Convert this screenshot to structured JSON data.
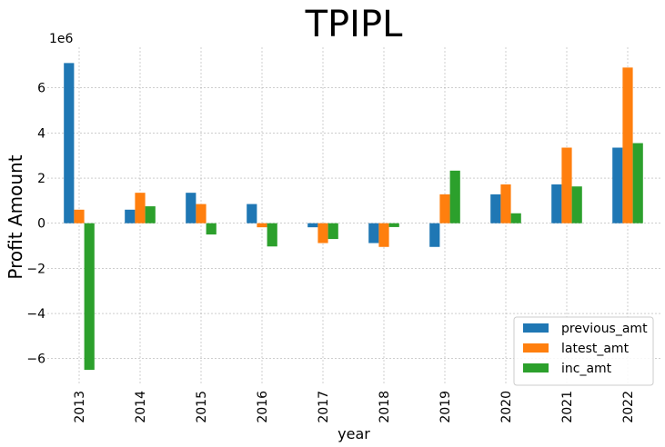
{
  "chart_data": {
    "type": "bar",
    "title": "TPIPL",
    "xlabel": "year",
    "ylabel": "Profit Amount",
    "offset_label": "1e6",
    "categories": [
      "2013",
      "2014",
      "2015",
      "2016",
      "2017",
      "2018",
      "2019",
      "2020",
      "2021",
      "2022"
    ],
    "series": [
      {
        "name": "previous_amt",
        "color": "#1f77b4",
        "values": [
          7100000,
          600000,
          1350000,
          850000,
          -180000,
          -880000,
          -1050000,
          1280000,
          1720000,
          3350000
        ]
      },
      {
        "name": "latest_amt",
        "color": "#ff7f0e",
        "values": [
          600000,
          1350000,
          850000,
          -180000,
          -880000,
          -1050000,
          1280000,
          1720000,
          3350000,
          6900000
        ]
      },
      {
        "name": "inc_amt",
        "color": "#2ca02c",
        "values": [
          -6500000,
          750000,
          -500000,
          -1030000,
          -700000,
          -170000,
          2330000,
          440000,
          1630000,
          3550000
        ]
      }
    ],
    "ylim": [
      -7100000,
      7800000
    ],
    "yticks": [
      -6000000,
      -4000000,
      -2000000,
      0,
      2000000,
      4000000,
      6000000
    ],
    "ytick_labels": [
      "−6",
      "−4",
      "−2",
      "0",
      "2",
      "4",
      "6"
    ],
    "grid": true,
    "legend_position": "lower-right"
  }
}
